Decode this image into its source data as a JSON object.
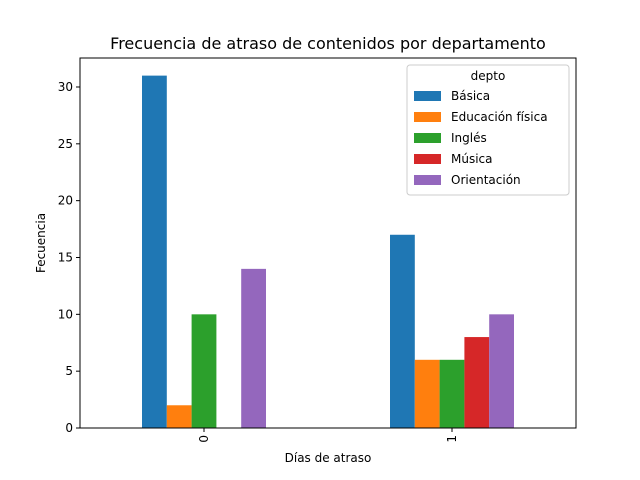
{
  "chart_data": {
    "type": "bar",
    "title": "Frecuencia de atraso de contenidos por departamento",
    "xlabel": "Días de atraso",
    "ylabel": "Fecuencia",
    "categories": [
      "0",
      "1"
    ],
    "ylim": [
      0,
      32.55
    ],
    "yticks": [
      0,
      5,
      10,
      15,
      20,
      25,
      30
    ],
    "grid": false,
    "legend": {
      "title": "depto",
      "placement": "top-right"
    },
    "series": [
      {
        "name": "Básica",
        "color": "#1f77b4",
        "values": [
          31,
          17
        ]
      },
      {
        "name": "Educación física",
        "color": "#ff7f0e",
        "values": [
          2,
          6
        ]
      },
      {
        "name": "Inglés",
        "color": "#2ca02c",
        "values": [
          10,
          6
        ]
      },
      {
        "name": "Música",
        "color": "#d62728",
        "values": [
          0,
          8
        ]
      },
      {
        "name": "Orientación",
        "color": "#9467bd",
        "values": [
          14,
          10
        ]
      }
    ]
  }
}
